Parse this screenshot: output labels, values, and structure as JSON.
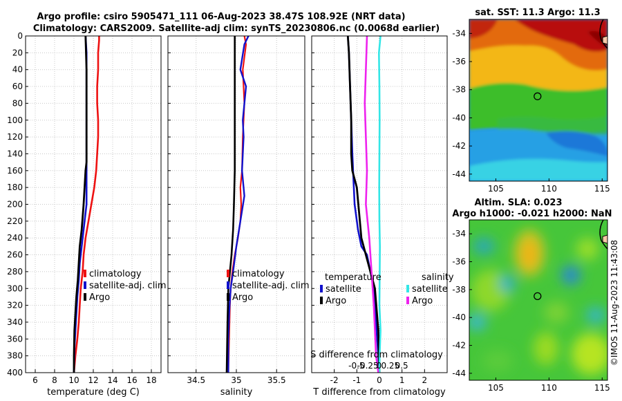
{
  "title": {
    "line1": "Argo profile: csiro 5905471_111 06-Aug-2023 38.47S 108.92E (NRT data)",
    "line2": "Climatology: CARS2009. Satellite-adj clim: synTS_20230806.nc (0.0068d earlier)"
  },
  "watermark": "©IMOS 11-Aug-2023 11:43:08",
  "colors": {
    "clim": "#ee1111",
    "sat": "#1111cc",
    "argo": "#000000",
    "sal_sat": "#33e6e6",
    "sal_argo": "#ee22ee"
  },
  "chart_data": [
    {
      "type": "line",
      "name": "temperature",
      "xlabel": "temperature (deg C)",
      "ylabel": "",
      "xlim": [
        5,
        19
      ],
      "ylim": [
        400,
        0
      ],
      "xticks": [
        "6",
        "8",
        "10",
        "12",
        "14",
        "16",
        "18"
      ],
      "yticks": [
        "0",
        "20",
        "40",
        "60",
        "80",
        "100",
        "120",
        "140",
        "160",
        "180",
        "200",
        "220",
        "240",
        "260",
        "280",
        "300",
        "320",
        "340",
        "360",
        "380",
        "400"
      ],
      "legend": [
        "climatology",
        "satellite-adj. clim",
        "Argo"
      ],
      "series": [
        {
          "name": "climatology",
          "x": [
            12.6,
            12.6,
            12.5,
            12.5,
            12.4,
            12.4,
            12.5,
            12.5,
            12.4,
            12.3,
            12.1,
            11.8,
            11.5,
            11.2,
            11.0,
            10.9,
            10.7,
            10.6,
            10.5,
            10.35,
            10.15,
            10.0
          ],
          "y": [
            0,
            5,
            20,
            40,
            60,
            80,
            100,
            120,
            140,
            160,
            180,
            200,
            220,
            240,
            260,
            280,
            300,
            320,
            340,
            360,
            380,
            400
          ]
        },
        {
          "name": "satellite-adj. clim",
          "x": [
            11.2,
            11.3,
            11.3,
            11.3,
            11.3,
            11.3,
            11.3,
            11.3,
            11.3,
            11.3,
            11.3,
            11.2,
            11.0,
            10.8,
            10.6,
            10.5,
            10.35,
            10.25,
            10.15,
            10.05,
            10.0
          ],
          "y": [
            0,
            20,
            40,
            60,
            80,
            100,
            120,
            140,
            160,
            180,
            200,
            210,
            230,
            250,
            270,
            290,
            310,
            330,
            350,
            370,
            400
          ]
        },
        {
          "name": "Argo",
          "x": [
            11.2,
            11.3,
            11.3,
            11.3,
            11.2,
            11.1,
            11.0,
            10.8,
            10.6,
            10.5,
            10.4,
            10.25,
            10.15,
            10.05,
            10.0,
            10.0
          ],
          "y": [
            0,
            40,
            100,
            150,
            160,
            180,
            200,
            230,
            250,
            270,
            290,
            310,
            330,
            350,
            380,
            400
          ]
        }
      ]
    },
    {
      "type": "line",
      "name": "salinity",
      "xlabel": "salinity",
      "xlim": [
        34.15,
        35.85
      ],
      "ylim": [
        400,
        0
      ],
      "xticks": [
        "34.5",
        "35",
        "35.5"
      ],
      "legend": [
        "climatology",
        "satellite-adj. clim",
        "Argo"
      ],
      "series": [
        {
          "name": "climatology",
          "x": [
            35.1,
            35.12,
            35.08,
            35.1,
            35.08,
            35.07,
            35.05,
            35.06,
            35.05,
            35.02,
            34.98,
            34.95,
            34.93,
            34.92,
            34.91,
            34.9
          ],
          "y": [
            0,
            10,
            40,
            80,
            120,
            160,
            180,
            200,
            220,
            240,
            260,
            280,
            300,
            320,
            360,
            400
          ]
        },
        {
          "name": "satellite-adj. clim",
          "x": [
            35.15,
            35.1,
            35.05,
            35.12,
            35.08,
            35.09,
            35.07,
            35.1,
            35.05,
            35.0,
            34.96,
            34.93,
            34.91,
            34.9,
            34.9
          ],
          "y": [
            0,
            10,
            40,
            60,
            100,
            120,
            160,
            190,
            220,
            250,
            280,
            300,
            330,
            360,
            400
          ]
        },
        {
          "name": "Argo",
          "x": [
            34.98,
            34.98,
            34.98,
            34.97,
            34.96,
            34.94,
            34.92,
            34.9,
            34.89,
            34.88
          ],
          "y": [
            0,
            80,
            160,
            200,
            230,
            260,
            280,
            300,
            340,
            400
          ]
        }
      ]
    },
    {
      "type": "line",
      "name": "difference",
      "xlabel": "T difference from climatology",
      "xlabel_top": "S difference from climatology",
      "xlim": [
        -3,
        3
      ],
      "ylim": [
        400,
        0
      ],
      "xticks": [
        "-2",
        "-1",
        "0",
        "1",
        "2"
      ],
      "xticks_top": [
        "-0.5",
        "-0.25",
        "0",
        "0.25",
        "0.5"
      ],
      "legend_left_title": "temperature",
      "legend_right_title": "salinity",
      "legend": [
        "satellite",
        "Argo",
        "satellite",
        "Argo"
      ],
      "series": [
        {
          "name": "T satellite",
          "x": [
            -1.4,
            -1.35,
            -1.3,
            -1.25,
            -1.2,
            -1.15,
            -1.1,
            -0.95,
            -0.8,
            -0.55,
            -0.25,
            -0.2,
            -0.1,
            -0.05,
            0
          ],
          "y": [
            0,
            20,
            60,
            100,
            140,
            170,
            200,
            230,
            250,
            260,
            300,
            320,
            360,
            380,
            400
          ]
        },
        {
          "name": "T Argo",
          "x": [
            -1.4,
            -1.35,
            -1.3,
            -1.25,
            -1.25,
            -1.2,
            -1.0,
            -0.8,
            -0.6,
            -0.4,
            -0.2,
            -0.05,
            0
          ],
          "y": [
            0,
            20,
            60,
            100,
            140,
            160,
            180,
            240,
            260,
            280,
            300,
            350,
            400
          ]
        },
        {
          "name": "S satellite",
          "x": [
            0.05,
            -0.02,
            0,
            0.01,
            0,
            -0.01,
            0,
            0.02,
            0.01,
            0,
            0.05,
            0.01,
            0
          ],
          "y": [
            0,
            20,
            60,
            100,
            140,
            180,
            220,
            250,
            290,
            320,
            350,
            380,
            400
          ]
        },
        {
          "name": "S Argo",
          "x": [
            -0.55,
            -0.6,
            -0.65,
            -0.6,
            -0.55,
            -0.6,
            -0.45,
            -0.35,
            -0.3,
            -0.25,
            -0.2,
            -0.15,
            -0.05
          ],
          "y": [
            0,
            40,
            80,
            120,
            160,
            200,
            240,
            280,
            300,
            320,
            350,
            380,
            400
          ]
        }
      ]
    },
    {
      "type": "heatmap",
      "name": "sst-map",
      "title": "sat. SST: 11.3 Argo: 11.3",
      "xlim": [
        102.5,
        115.5
      ],
      "ylim": [
        -44.5,
        -33
      ],
      "xticks": [
        "105",
        "110",
        "115"
      ],
      "yticks": [
        "-34",
        "-36",
        "-38",
        "-40",
        "-42",
        "-44"
      ],
      "marker": {
        "lon": 108.92,
        "lat": -38.47
      }
    },
    {
      "type": "heatmap",
      "name": "sla-map",
      "title_line1": "Altim. SLA: 0.023",
      "title_line2": "Argo h1000: -0.021 h2000: NaN",
      "xlim": [
        102.5,
        115.5
      ],
      "ylim": [
        -44.5,
        -33
      ],
      "xticks": [
        "105",
        "110",
        "115"
      ],
      "yticks": [
        "-34",
        "-36",
        "-38",
        "-40",
        "-42",
        "-44"
      ],
      "marker": {
        "lon": 108.92,
        "lat": -38.47
      }
    }
  ]
}
